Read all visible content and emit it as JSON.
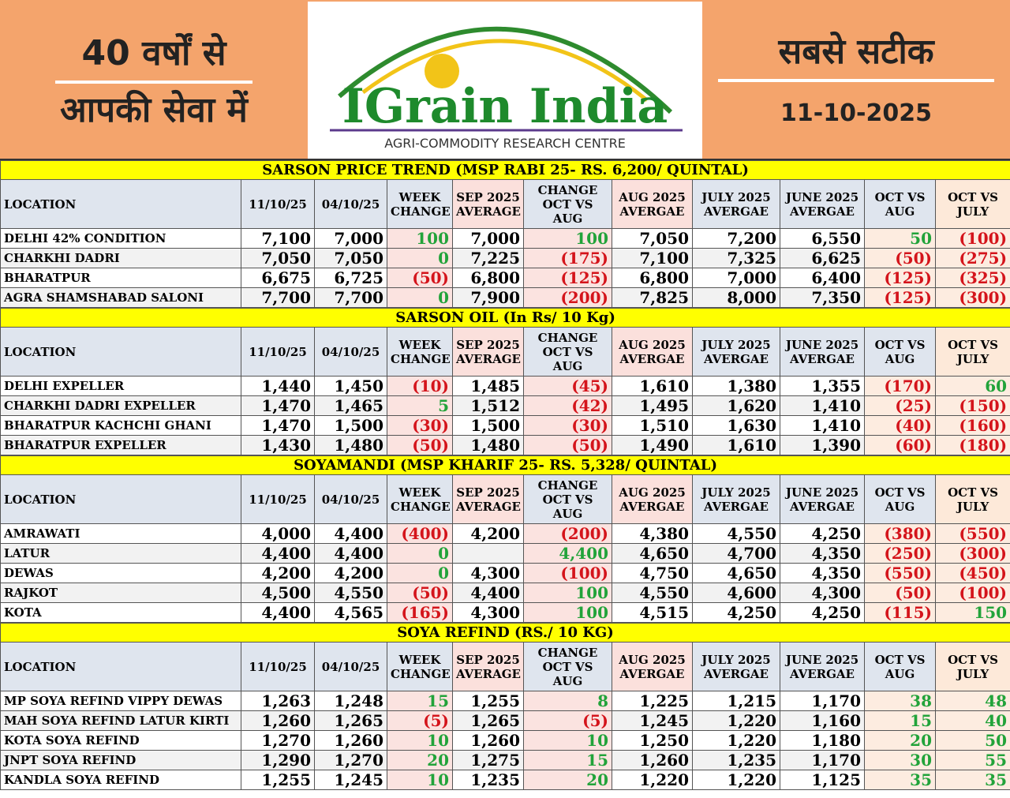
{
  "header": {
    "left_line1": "40 वर्षों से",
    "left_line2": "आपकी सेवा में",
    "brand": "IGrain India",
    "tagline": "AGRI-COMMODITY RESEARCH CENTRE",
    "right_line1": "सबसे सटीक",
    "date": "11-10-2025"
  },
  "sections": [
    {
      "title": "SARSON PRICE TREND (MSP RABI 25- RS. 6,200/ QUINTAL)",
      "headers": [
        "LOCATION",
        "11/10/25",
        "04/10/25",
        "WEEK CHANGE",
        "SEP 2025 AVERAGE",
        "CHANGE OCT VS AUG",
        "AUG 2025 AVERGAE",
        "JULY 2025 AVERGAE",
        "JUNE 2025 AVERGAE",
        "OCT VS AUG",
        "OCT VS JULY"
      ],
      "rows": [
        {
          "location": "DELHI 42% CONDITION",
          "cells": [
            "7,100",
            "7,000",
            "100",
            "7,000",
            "100",
            "7,050",
            "7,200",
            "6,550",
            "50",
            "(100)"
          ]
        },
        {
          "location": "CHARKHI DADRI",
          "cells": [
            "7,050",
            "7,050",
            "0",
            "7,225",
            "(175)",
            "7,100",
            "7,325",
            "6,625",
            "(50)",
            "(275)"
          ]
        },
        {
          "location": "BHARATPUR",
          "cells": [
            "6,675",
            "6,725",
            "(50)",
            "6,800",
            "(125)",
            "6,800",
            "7,000",
            "6,400",
            "(125)",
            "(325)"
          ]
        },
        {
          "location": "AGRA SHAMSHABAD SALONI",
          "cells": [
            "7,700",
            "7,700",
            "0",
            "7,900",
            "(200)",
            "7,825",
            "8,000",
            "7,350",
            "(125)",
            "(300)"
          ]
        }
      ]
    },
    {
      "title": "SARSON OIL (In Rs/ 10 Kg)",
      "headers": [
        "LOCATION",
        "11/10/25",
        "04/10/25",
        "WEEK CHANGE",
        "SEP 2025 AVERAGE",
        "CHANGE OCT VS AUG",
        "AUG 2025 AVERGAE",
        "JULY 2025 AVERGAE",
        "JUNE 2025 AVERGAE",
        "OCT VS AUG",
        "OCT VS JULY"
      ],
      "rows": [
        {
          "location": "DELHI EXPELLER",
          "cells": [
            "1,440",
            "1,450",
            "(10)",
            "1,485",
            "(45)",
            "1,610",
            "1,380",
            "1,355",
            "(170)",
            "60"
          ]
        },
        {
          "location": "CHARKHI DADRI EXPELLER",
          "cells": [
            "1,470",
            "1,465",
            "5",
            "1,512",
            "(42)",
            "1,495",
            "1,620",
            "1,410",
            "(25)",
            "(150)"
          ]
        },
        {
          "location": "BHARATPUR KACHCHI GHANI",
          "cells": [
            "1,470",
            "1,500",
            "(30)",
            "1,500",
            "(30)",
            "1,510",
            "1,630",
            "1,410",
            "(40)",
            "(160)"
          ]
        },
        {
          "location": "BHARATPUR EXPELLER",
          "cells": [
            "1,430",
            "1,480",
            "(50)",
            "1,480",
            "(50)",
            "1,490",
            "1,610",
            "1,390",
            "(60)",
            "(180)"
          ]
        }
      ]
    },
    {
      "title": "SOYAMANDI (MSP KHARIF 25- RS. 5,328/ QUINTAL)",
      "headers": [
        "LOCATION",
        "11/10/25",
        "04/10/25",
        "WEEK CHANGE",
        "SEP 2025 AVERAGE",
        "CHANGE OCT VS AUG",
        "AUG 2025 AVERGAE",
        "JULY 2025 AVERGAE",
        "JUNE 2025 AVERGAE",
        "OCT VS AUG",
        "OCT VS JULY"
      ],
      "rows": [
        {
          "location": "AMRAWATI",
          "cells": [
            "4,000",
            "4,400",
            "(400)",
            "4,200",
            "(200)",
            "4,380",
            "4,550",
            "4,250",
            "(380)",
            "(550)"
          ]
        },
        {
          "location": "LATUR",
          "cells": [
            "4,400",
            "4,400",
            "0",
            null,
            "4,400",
            "4,650",
            "4,700",
            "4,350",
            "(250)",
            "(300)"
          ]
        },
        {
          "location": "DEWAS",
          "cells": [
            "4,200",
            "4,200",
            "0",
            "4,300",
            "(100)",
            "4,750",
            "4,650",
            "4,350",
            "(550)",
            "(450)"
          ]
        },
        {
          "location": "RAJKOT",
          "cells": [
            "4,500",
            "4,550",
            "(50)",
            "4,400",
            "100",
            "4,550",
            "4,600",
            "4,300",
            "(50)",
            "(100)"
          ]
        },
        {
          "location": "KOTA",
          "cells": [
            "4,400",
            "4,565",
            "(165)",
            "4,300",
            "100",
            "4,515",
            "4,250",
            "4,250",
            "(115)",
            "150"
          ]
        }
      ]
    },
    {
      "title": "SOYA REFIND (RS./ 10 KG)",
      "headers": [
        "LOCATION",
        "11/10/25",
        "04/10/25",
        "WEEK CHANGE",
        "SEP 2025 AVERAGE",
        "CHANGE OCT VS AUG",
        "AUG 2025 AVERGAE",
        "JULY 2025 AVERGAE",
        "JUNE 2025 AVERGAE",
        "OCT VS AUG",
        "OCT VS JULY"
      ],
      "rows": [
        {
          "location": "MP SOYA REFIND VIPPY DEWAS",
          "cells": [
            "1,263",
            "1,248",
            "15",
            "1,255",
            "8",
            "1,225",
            "1,215",
            "1,170",
            "38",
            "48"
          ]
        },
        {
          "location": "MAH SOYA REFIND LATUR KIRTI",
          "cells": [
            "1,260",
            "1,265",
            "(5)",
            "1,265",
            "(5)",
            "1,245",
            "1,220",
            "1,160",
            "15",
            "40"
          ]
        },
        {
          "location": "KOTA SOYA REFIND",
          "cells": [
            "1,270",
            "1,260",
            "10",
            "1,260",
            "10",
            "1,250",
            "1,220",
            "1,180",
            "20",
            "50"
          ]
        },
        {
          "location": "JNPT SOYA REFIND",
          "cells": [
            "1,290",
            "1,270",
            "20",
            "1,275",
            "15",
            "1,260",
            "1,235",
            "1,170",
            "30",
            "55"
          ]
        },
        {
          "location": "KANDLA SOYA REFIND",
          "cells": [
            "1,255",
            "1,245",
            "10",
            "1,235",
            "20",
            "1,220",
            "1,220",
            "1,125",
            "35",
            "35"
          ]
        }
      ]
    }
  ]
}
